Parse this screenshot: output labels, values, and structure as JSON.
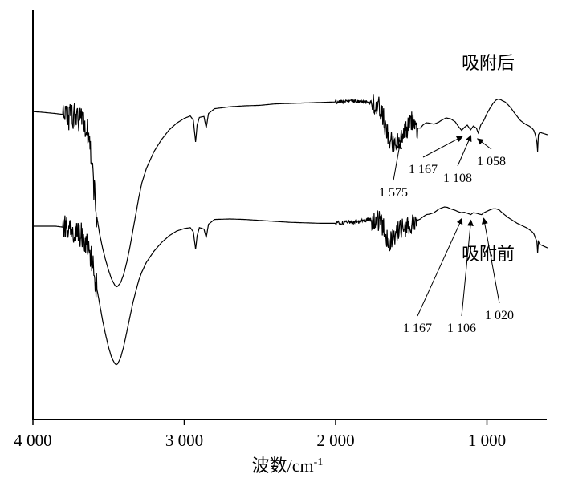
{
  "chart_data": {
    "type": "line",
    "xlabel": "波数/cm",
    "xlabel_sup": "-1",
    "xlim": [
      4000,
      600
    ],
    "x_reversed": true,
    "ticks": [
      {
        "value": 4000,
        "label": "4 000"
      },
      {
        "value": 3000,
        "label": "3 000"
      },
      {
        "value": 2000,
        "label": "2 000"
      },
      {
        "value": 1000,
        "label": "1 000"
      }
    ],
    "grid": false,
    "series": [
      {
        "name": "吸附后",
        "offset": 0,
        "points": [
          [
            4000,
            0.52
          ],
          [
            3950,
            0.53
          ],
          [
            3850,
            0.56
          ],
          [
            3800,
            0.58
          ],
          [
            3780,
            0.6
          ],
          [
            3760,
            0.64
          ],
          [
            3740,
            0.62
          ],
          [
            3720,
            0.6
          ],
          [
            3700,
            0.65
          ],
          [
            3680,
            0.7
          ],
          [
            3660,
            0.75
          ],
          [
            3640,
            0.9
          ],
          [
            3620,
            1.4
          ],
          [
            3600,
            2.0
          ],
          [
            3580,
            2.65
          ],
          [
            3560,
            3.05
          ],
          [
            3540,
            3.35
          ],
          [
            3520,
            3.6
          ],
          [
            3500,
            3.82
          ],
          [
            3480,
            4.0
          ],
          [
            3460,
            4.12
          ],
          [
            3450,
            4.16
          ],
          [
            3440,
            4.15
          ],
          [
            3420,
            4.07
          ],
          [
            3400,
            3.9
          ],
          [
            3380,
            3.65
          ],
          [
            3360,
            3.35
          ],
          [
            3340,
            3.0
          ],
          [
            3320,
            2.65
          ],
          [
            3300,
            2.3
          ],
          [
            3280,
            2.0
          ],
          [
            3250,
            1.7
          ],
          [
            3200,
            1.35
          ],
          [
            3150,
            1.1
          ],
          [
            3100,
            0.9
          ],
          [
            3050,
            0.76
          ],
          [
            3000,
            0.66
          ],
          [
            2960,
            0.61
          ],
          [
            2940,
            0.7
          ],
          [
            2925,
            1.15
          ],
          [
            2915,
            0.8
          ],
          [
            2900,
            0.64
          ],
          [
            2870,
            0.62
          ],
          [
            2855,
            0.86
          ],
          [
            2840,
            0.56
          ],
          [
            2800,
            0.46
          ],
          [
            2700,
            0.42
          ],
          [
            2600,
            0.4
          ],
          [
            2500,
            0.39
          ],
          [
            2400,
            0.36
          ],
          [
            2300,
            0.35
          ],
          [
            2200,
            0.34
          ],
          [
            2100,
            0.33
          ],
          [
            2000,
            0.32
          ],
          [
            1900,
            0.31
          ],
          [
            1850,
            0.31
          ],
          [
            1800,
            0.32
          ],
          [
            1760,
            0.33
          ],
          [
            1740,
            0.36
          ],
          [
            1720,
            0.4
          ],
          [
            1700,
            0.5
          ],
          [
            1680,
            0.7
          ],
          [
            1660,
            0.95
          ],
          [
            1640,
            1.15
          ],
          [
            1620,
            1.2
          ],
          [
            1600,
            1.12
          ],
          [
            1575,
            1.06
          ],
          [
            1550,
            1.0
          ],
          [
            1530,
            0.9
          ],
          [
            1500,
            0.72
          ],
          [
            1480,
            0.8
          ],
          [
            1460,
            0.86
          ],
          [
            1440,
            0.86
          ],
          [
            1420,
            0.79
          ],
          [
            1400,
            0.75
          ],
          [
            1380,
            0.76
          ],
          [
            1350,
            0.78
          ],
          [
            1320,
            0.74
          ],
          [
            1300,
            0.7
          ],
          [
            1270,
            0.65
          ],
          [
            1240,
            0.67
          ],
          [
            1210,
            0.73
          ],
          [
            1190,
            0.82
          ],
          [
            1167,
            0.91
          ],
          [
            1150,
            0.85
          ],
          [
            1130,
            0.8
          ],
          [
            1108,
            0.9
          ],
          [
            1090,
            0.82
          ],
          [
            1070,
            0.86
          ],
          [
            1058,
            0.96
          ],
          [
            1040,
            0.79
          ],
          [
            1020,
            0.7
          ],
          [
            1000,
            0.56
          ],
          [
            980,
            0.45
          ],
          [
            960,
            0.35
          ],
          [
            940,
            0.28
          ],
          [
            925,
            0.26
          ],
          [
            910,
            0.27
          ],
          [
            900,
            0.29
          ],
          [
            880,
            0.32
          ],
          [
            860,
            0.38
          ],
          [
            840,
            0.45
          ],
          [
            820,
            0.54
          ],
          [
            800,
            0.62
          ],
          [
            780,
            0.7
          ],
          [
            760,
            0.75
          ],
          [
            740,
            0.79
          ],
          [
            720,
            0.82
          ],
          [
            700,
            0.87
          ],
          [
            690,
            0.91
          ],
          [
            680,
            1.0
          ],
          [
            670,
            1.15
          ],
          [
            665,
            1.35
          ],
          [
            660,
            1.0
          ],
          [
            650,
            0.95
          ],
          [
            600,
            1.0
          ]
        ]
      },
      {
        "name": "吸附前",
        "offset": 2.6,
        "points": [
          [
            4000,
            0.3
          ],
          [
            3950,
            0.3
          ],
          [
            3850,
            0.3
          ],
          [
            3800,
            0.32
          ],
          [
            3780,
            0.34
          ],
          [
            3760,
            0.38
          ],
          [
            3740,
            0.36
          ],
          [
            3720,
            0.38
          ],
          [
            3700,
            0.42
          ],
          [
            3680,
            0.48
          ],
          [
            3660,
            0.56
          ],
          [
            3640,
            0.7
          ],
          [
            3620,
            0.9
          ],
          [
            3600,
            1.2
          ],
          [
            3580,
            1.55
          ],
          [
            3560,
            1.9
          ],
          [
            3540,
            2.25
          ],
          [
            3520,
            2.55
          ],
          [
            3500,
            2.82
          ],
          [
            3480,
            3.03
          ],
          [
            3460,
            3.15
          ],
          [
            3450,
            3.18
          ],
          [
            3440,
            3.16
          ],
          [
            3420,
            3.03
          ],
          [
            3400,
            2.8
          ],
          [
            3380,
            2.5
          ],
          [
            3360,
            2.2
          ],
          [
            3340,
            1.9
          ],
          [
            3320,
            1.65
          ],
          [
            3300,
            1.42
          ],
          [
            3280,
            1.25
          ],
          [
            3250,
            1.05
          ],
          [
            3200,
            0.82
          ],
          [
            3150,
            0.64
          ],
          [
            3100,
            0.5
          ],
          [
            3050,
            0.4
          ],
          [
            3000,
            0.35
          ],
          [
            2960,
            0.33
          ],
          [
            2940,
            0.42
          ],
          [
            2925,
            0.78
          ],
          [
            2915,
            0.5
          ],
          [
            2900,
            0.33
          ],
          [
            2870,
            0.36
          ],
          [
            2855,
            0.54
          ],
          [
            2840,
            0.26
          ],
          [
            2800,
            0.16
          ],
          [
            2700,
            0.15
          ],
          [
            2600,
            0.16
          ],
          [
            2500,
            0.18
          ],
          [
            2400,
            0.2
          ],
          [
            2300,
            0.22
          ],
          [
            2200,
            0.23
          ],
          [
            2100,
            0.24
          ],
          [
            2000,
            0.24
          ],
          [
            1900,
            0.22
          ],
          [
            1850,
            0.21
          ],
          [
            1800,
            0.17
          ],
          [
            1760,
            0.15
          ],
          [
            1740,
            0.15
          ],
          [
            1720,
            0.17
          ],
          [
            1700,
            0.24
          ],
          [
            1680,
            0.33
          ],
          [
            1660,
            0.6
          ],
          [
            1640,
            0.65
          ],
          [
            1620,
            0.52
          ],
          [
            1600,
            0.42
          ],
          [
            1575,
            0.38
          ],
          [
            1550,
            0.34
          ],
          [
            1530,
            0.3
          ],
          [
            1500,
            0.24
          ],
          [
            1480,
            0.22
          ],
          [
            1460,
            0.18
          ],
          [
            1440,
            0.15
          ],
          [
            1420,
            0.1
          ],
          [
            1400,
            0.06
          ],
          [
            1380,
            0.05
          ],
          [
            1350,
            0.02
          ],
          [
            1320,
            -0.05
          ],
          [
            1300,
            -0.08
          ],
          [
            1280,
            -0.1
          ],
          [
            1260,
            -0.09
          ],
          [
            1240,
            -0.06
          ],
          [
            1210,
            -0.03
          ],
          [
            1190,
            0.0
          ],
          [
            1167,
            0.02
          ],
          [
            1150,
            0.01
          ],
          [
            1130,
            0.03
          ],
          [
            1106,
            0.06
          ],
          [
            1090,
            0.02
          ],
          [
            1070,
            0.03
          ],
          [
            1050,
            0.05
          ],
          [
            1035,
            0.06
          ],
          [
            1020,
            0.02
          ],
          [
            1000,
            -0.01
          ],
          [
            980,
            -0.04
          ],
          [
            960,
            -0.06
          ],
          [
            940,
            -0.06
          ],
          [
            920,
            -0.04
          ],
          [
            900,
            0.02
          ],
          [
            880,
            0.07
          ],
          [
            860,
            0.12
          ],
          [
            840,
            0.16
          ],
          [
            820,
            0.2
          ],
          [
            800,
            0.24
          ],
          [
            780,
            0.27
          ],
          [
            760,
            0.3
          ],
          [
            740,
            0.33
          ],
          [
            720,
            0.37
          ],
          [
            700,
            0.42
          ],
          [
            690,
            0.46
          ],
          [
            680,
            0.54
          ],
          [
            670,
            0.62
          ],
          [
            665,
            0.86
          ],
          [
            660,
            0.62
          ],
          [
            650,
            0.68
          ],
          [
            600,
            0.75
          ]
        ]
      }
    ],
    "annotations": [
      {
        "series": 0,
        "x": 1575,
        "label": "1 575"
      },
      {
        "series": 0,
        "x": 1167,
        "label": "1 167"
      },
      {
        "series": 0,
        "x": 1108,
        "label": "1 108"
      },
      {
        "series": 0,
        "x": 1058,
        "label": "1 058"
      },
      {
        "series": 1,
        "x": 1167,
        "label": "1 167"
      },
      {
        "series": 1,
        "x": 1106,
        "label": "1 106"
      },
      {
        "series": 1,
        "x": 1020,
        "label": "1 020"
      }
    ]
  }
}
